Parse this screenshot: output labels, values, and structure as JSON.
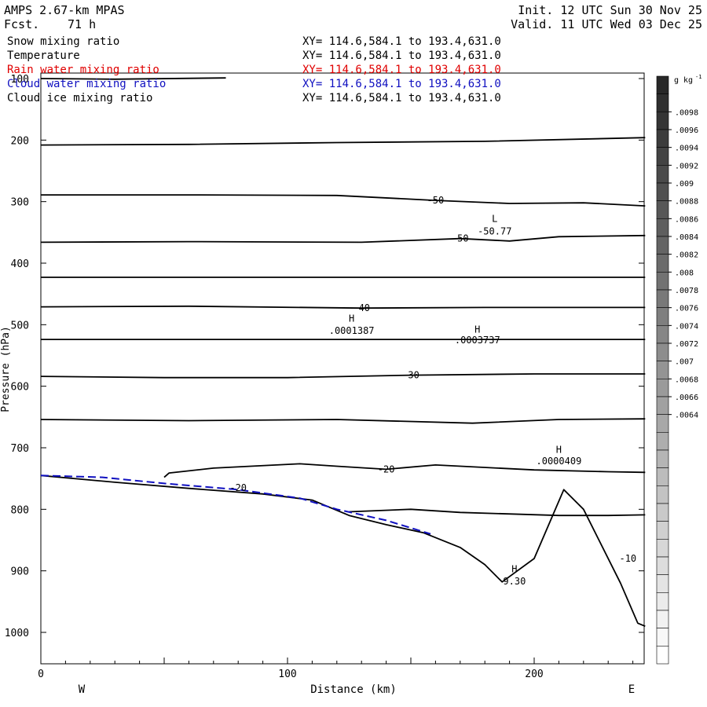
{
  "header": {
    "model": "AMPS 2.67-km MPAS",
    "fcst_label": "Fcst.",
    "fcst_value": "71 h",
    "init": "Init. 12 UTC Sun 30 Nov 25",
    "valid": "Valid. 11 UTC Wed 03 Dec 25"
  },
  "legend": [
    {
      "name": "Snow mixing ratio",
      "xy": "XY= 114.6,584.1 to 193.4,631.0",
      "color": "#000000"
    },
    {
      "name": "Temperature",
      "xy": "XY= 114.6,584.1 to 193.4,631.0",
      "color": "#000000"
    },
    {
      "name": "Rain water mixing ratio",
      "xy": "XY= 114.6,584.1 to 193.4,631.0",
      "color": "#e00000"
    },
    {
      "name": "Cloud water mixing ratio",
      "xy": "XY= 114.6,584.1 to 193.4,631.0",
      "color": "#1010c0"
    },
    {
      "name": "Cloud ice mixing ratio",
      "xy": "XY= 114.6,584.1 to 193.4,631.0",
      "color": "#000000"
    }
  ],
  "chart_data": {
    "type": "line",
    "title": "",
    "xlabel": "Distance (km)",
    "ylabel": "Pressure (hPa)",
    "xlim": [
      0,
      245
    ],
    "ylim": [
      100,
      1050
    ],
    "y_reversed": true,
    "x_ticks": [
      0,
      100,
      200
    ],
    "y_ticks": [
      100,
      200,
      300,
      400,
      500,
      600,
      700,
      800,
      900,
      1000
    ],
    "direction_left": "W",
    "direction_right": "E",
    "grid": false,
    "series": [
      {
        "values": [
          [
            0,
            100
          ],
          [
            30,
            101
          ],
          [
            75,
            99
          ]
        ],
        "role": "isotherm-top"
      },
      {
        "values": [
          [
            0,
            208
          ],
          [
            60,
            207
          ],
          [
            120,
            204
          ],
          [
            180,
            202
          ],
          [
            245,
            196
          ]
        ],
        "role": "isotherm"
      },
      {
        "values": [
          [
            0,
            289
          ],
          [
            60,
            289
          ],
          [
            120,
            290
          ],
          [
            160,
            298
          ],
          [
            190,
            303
          ],
          [
            220,
            302
          ],
          [
            245,
            307
          ]
        ],
        "role": "isotherm",
        "label": "-50"
      },
      {
        "values": [
          [
            0,
            366
          ],
          [
            60,
            365
          ],
          [
            130,
            366
          ],
          [
            170,
            360
          ],
          [
            190,
            364
          ],
          [
            210,
            357
          ],
          [
            245,
            355
          ]
        ],
        "role": "isotherm",
        "label": "-50"
      },
      {
        "values": [
          [
            0,
            423
          ],
          [
            60,
            423
          ],
          [
            150,
            423
          ],
          [
            245,
            423
          ]
        ],
        "role": "isotherm"
      },
      {
        "values": [
          [
            0,
            471
          ],
          [
            60,
            470
          ],
          [
            130,
            473
          ],
          [
            180,
            472
          ],
          [
            245,
            472
          ]
        ],
        "role": "isotherm",
        "label": "-40"
      },
      {
        "values": [
          [
            0,
            524
          ],
          [
            70,
            524
          ],
          [
            150,
            524
          ],
          [
            245,
            524
          ]
        ],
        "role": "isotherm"
      },
      {
        "values": [
          [
            0,
            584
          ],
          [
            50,
            586
          ],
          [
            100,
            586
          ],
          [
            150,
            582
          ],
          [
            200,
            580
          ],
          [
            245,
            580
          ]
        ],
        "role": "isotherm",
        "label": "-30"
      },
      {
        "values": [
          [
            0,
            654
          ],
          [
            60,
            656
          ],
          [
            120,
            654
          ],
          [
            175,
            660
          ],
          [
            210,
            654
          ],
          [
            245,
            653
          ]
        ],
        "role": "isotherm"
      },
      {
        "values": [
          [
            50,
            748
          ],
          [
            52,
            741
          ],
          [
            70,
            733
          ],
          [
            105,
            726
          ],
          [
            120,
            730
          ],
          [
            140,
            735
          ],
          [
            160,
            728
          ],
          [
            200,
            736
          ],
          [
            230,
            739
          ],
          [
            245,
            740
          ]
        ],
        "role": "isotherm",
        "label": "-20"
      },
      {
        "values": [
          [
            125,
            804
          ],
          [
            150,
            800
          ],
          [
            170,
            805
          ],
          [
            210,
            810
          ],
          [
            230,
            810
          ],
          [
            245,
            809
          ]
        ],
        "role": "isotherm"
      },
      {
        "values": [
          [
            0,
            745
          ],
          [
            30,
            756
          ],
          [
            60,
            766
          ],
          [
            90,
            775
          ],
          [
            110,
            785
          ],
          [
            125,
            810
          ],
          [
            140,
            825
          ],
          [
            155,
            838
          ],
          [
            170,
            862
          ],
          [
            180,
            890
          ],
          [
            187,
            918
          ],
          [
            200,
            880
          ],
          [
            212,
            768
          ],
          [
            220,
            800
          ],
          [
            235,
            920
          ],
          [
            242,
            985
          ],
          [
            245,
            990
          ]
        ],
        "role": "terrain"
      },
      {
        "values": [
          [
            0,
            745
          ],
          [
            25,
            748
          ],
          [
            50,
            758
          ],
          [
            80,
            768
          ],
          [
            105,
            782
          ],
          [
            120,
            800
          ],
          [
            140,
            818
          ],
          [
            158,
            840
          ]
        ],
        "role": "cloud-water",
        "color": "#1010c0"
      }
    ],
    "annotations": [
      {
        "text": "L",
        "x": 184,
        "y": 328
      },
      {
        "text": "-50.77",
        "x": 184,
        "y": 348
      },
      {
        "text": "H",
        "x": 126,
        "y": 490
      },
      {
        "text": ".0001387",
        "x": 126,
        "y": 510
      },
      {
        "text": "H",
        "x": 177,
        "y": 508
      },
      {
        "text": ".0003737",
        "x": 177,
        "y": 525
      },
      {
        "text": "H",
        "x": 210,
        "y": 703
      },
      {
        "text": ".0000409",
        "x": 210,
        "y": 722
      },
      {
        "text": "H",
        "x": 192,
        "y": 897
      },
      {
        "text": "9.30",
        "x": 192,
        "y": 917
      },
      {
        "text": "-20",
        "x": 80,
        "y": 765
      },
      {
        "text": "-10",
        "x": 238,
        "y": 880
      }
    ],
    "colorbar": {
      "unit": "g kg",
      "unit_sup": "-1",
      "labels": [
        ".0098",
        ".0096",
        ".0094",
        ".0092",
        ".009",
        ".0088",
        ".0086",
        ".0084",
        ".0082",
        ".008",
        ".0078",
        ".0076",
        ".0074",
        ".0072",
        ".007",
        ".0068",
        ".0066",
        ".0064"
      ]
    }
  }
}
